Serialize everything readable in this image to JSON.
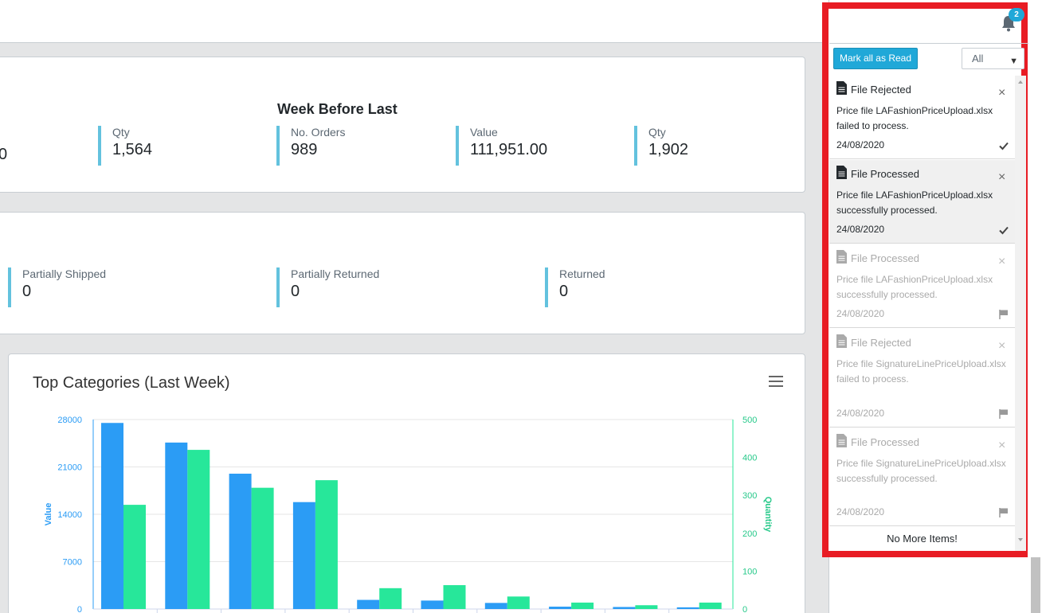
{
  "orders_summary": {
    "section_title": "Week Before Last",
    "partial_value": "0",
    "last_week_qty": {
      "label": "Qty",
      "value": "1,564"
    },
    "week_before": [
      {
        "label": "No. Orders",
        "value": "989"
      },
      {
        "label": "Value",
        "value": "111,951.00"
      },
      {
        "label": "Qty",
        "value": "1,902"
      }
    ]
  },
  "shipping_status": [
    {
      "label": "Partially Shipped",
      "value": "0"
    },
    {
      "label": "Partially Returned",
      "value": "0"
    },
    {
      "label": "Returned",
      "value": "0"
    }
  ],
  "chart_title": "Top Categories (Last Week)",
  "chart_data": {
    "type": "bar",
    "title": "Top Categories (Last Week)",
    "xlabel": "",
    "ylabel": "Value",
    "y2label": "Quantity",
    "ylim": [
      0,
      28000
    ],
    "y2lim": [
      0,
      500
    ],
    "y_ticks": [
      "0",
      "7000",
      "14000",
      "21000",
      "28000"
    ],
    "y2_ticks": [
      "0",
      "100",
      "200",
      "300",
      "400",
      "500"
    ],
    "categories": [
      "",
      "",
      "",
      "",
      "",
      "",
      "",
      "",
      "",
      ""
    ],
    "series": [
      {
        "axis": "left",
        "color": "#2b9cf5",
        "values": [
          27500,
          24600,
          20000,
          15800,
          1350,
          1250,
          900,
          350,
          300,
          250
        ]
      },
      {
        "axis": "right",
        "color": "#27e79a",
        "values": [
          275,
          420,
          320,
          340,
          55,
          63,
          33,
          17,
          10,
          17
        ]
      }
    ]
  },
  "notifications": {
    "badge_count": "2",
    "mark_all_label": "Mark all as Read",
    "filter_value": "All",
    "items": [
      {
        "title": "File Rejected",
        "message": "Price file LAFashionPriceUpload.xlsx failed to process.",
        "date": "24/08/2020",
        "state": "read"
      },
      {
        "title": "File Processed",
        "message": "Price file LAFashionPriceUpload.xlsx successfully processed.",
        "date": "24/08/2020",
        "state": "read"
      },
      {
        "title": "File Processed",
        "message": "Price file LAFashionPriceUpload.xlsx successfully processed.",
        "date": "24/08/2020",
        "state": "unread"
      },
      {
        "title": "File Rejected",
        "message": "Price file SignatureLinePriceUpload.xlsx failed to process.",
        "date": "24/08/2020",
        "state": "unread"
      },
      {
        "title": "File Processed",
        "message": "Price file SignatureLinePriceUpload.xlsx successfully processed.",
        "date": "24/08/2020",
        "state": "unread"
      }
    ],
    "no_more_label": "No More Items!"
  },
  "colors": {
    "accent": "#20a8d8",
    "highlight_border": "#e81c24",
    "stat_border": "#63c2de"
  },
  "icons": {
    "bell": "bell-icon",
    "document": "document-icon",
    "close": "close-icon",
    "check": "check-icon",
    "flag": "flag-icon",
    "menu": "hamburger-menu-icon"
  }
}
